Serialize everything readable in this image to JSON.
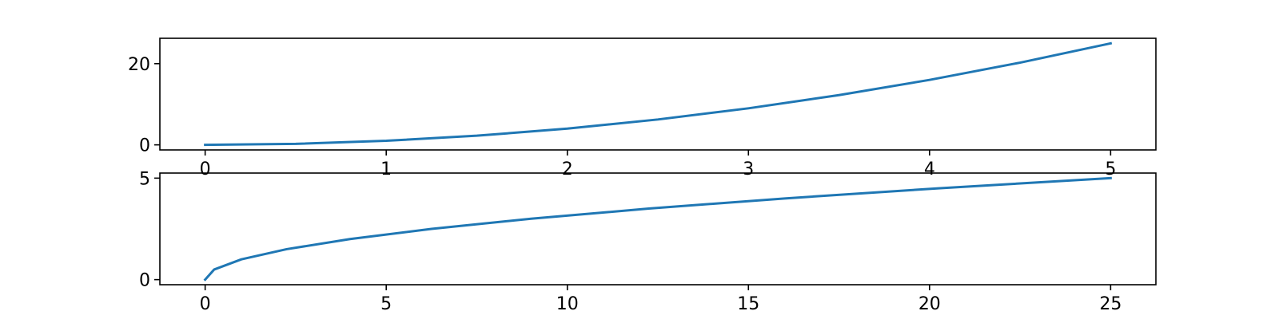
{
  "chart_data": [
    {
      "type": "line",
      "title": "",
      "xlabel": "",
      "ylabel": "",
      "xlim": [
        -0.25,
        5.25
      ],
      "ylim": [
        -1.25,
        26.25
      ],
      "xticks": [
        0,
        1,
        2,
        3,
        4,
        5
      ],
      "xtick_labels": [
        "0",
        "1",
        "2",
        "3",
        "4",
        "5"
      ],
      "yticks": [
        0,
        20
      ],
      "ytick_labels": [
        "0",
        "20"
      ],
      "grid": false,
      "legend": "none",
      "color": "#1f77b4",
      "x": [
        0,
        0.5,
        1,
        1.5,
        2,
        2.5,
        3,
        3.5,
        4,
        4.5,
        5
      ],
      "y": [
        0,
        0.25,
        1,
        2.25,
        4,
        6.25,
        9,
        12.25,
        16,
        20.25,
        25
      ]
    },
    {
      "type": "line",
      "title": "",
      "xlabel": "",
      "ylabel": "",
      "xlim": [
        -1.25,
        26.25
      ],
      "ylim": [
        -0.25,
        5.25
      ],
      "xticks": [
        0,
        5,
        10,
        15,
        20,
        25
      ],
      "xtick_labels": [
        "0",
        "5",
        "10",
        "15",
        "20",
        "25"
      ],
      "yticks": [
        0,
        5
      ],
      "ytick_labels": [
        "0",
        "5"
      ],
      "grid": false,
      "legend": "none",
      "color": "#1f77b4",
      "x": [
        0,
        0.25,
        1,
        2.25,
        4,
        6.25,
        9,
        12.25,
        16,
        20.25,
        25
      ],
      "y": [
        0,
        0.5,
        1,
        1.5,
        2,
        2.5,
        3,
        3.5,
        4,
        4.5,
        5
      ]
    }
  ]
}
